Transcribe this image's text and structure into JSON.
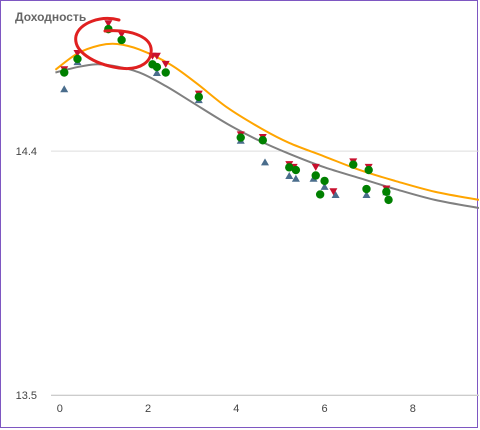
{
  "colors": {
    "fit_orange": "#ffa500",
    "fit_gray": "#808080",
    "series_green": "#008000",
    "series_red": "#c8102e",
    "series_blue": "#4a6d8c",
    "annotation": "#e02020",
    "grid": "#dddddd"
  },
  "chart_data": {
    "type": "scatter",
    "title": "Доходность",
    "xlabel": "",
    "ylabel": "",
    "xlim": [
      -0.2,
      9.5
    ],
    "ylim": [
      13.5,
      14.88
    ],
    "x_ticks": [
      0,
      2,
      4,
      6,
      8
    ],
    "y_ticks": [
      13.5,
      14.4
    ],
    "grid": "horizontal",
    "series": [
      {
        "marker": "circle",
        "points": [
          [
            0.1,
            14.69
          ],
          [
            0.4,
            14.74
          ],
          [
            1.1,
            14.85
          ],
          [
            1.4,
            14.81
          ],
          [
            2.1,
            14.72
          ],
          [
            2.2,
            14.71
          ],
          [
            2.4,
            14.69
          ],
          [
            3.15,
            14.6
          ],
          [
            4.1,
            14.45
          ],
          [
            4.6,
            14.44
          ],
          [
            5.2,
            14.34
          ],
          [
            5.35,
            14.33
          ],
          [
            5.8,
            14.31
          ],
          [
            5.9,
            14.24
          ],
          [
            6.0,
            14.29
          ],
          [
            6.65,
            14.35
          ],
          [
            6.95,
            14.26
          ],
          [
            7.0,
            14.33
          ],
          [
            7.4,
            14.25
          ],
          [
            7.45,
            14.22
          ]
        ]
      },
      {
        "marker": "triangle-down",
        "points": [
          [
            0.1,
            14.7
          ],
          [
            0.4,
            14.76
          ],
          [
            1.1,
            14.87
          ],
          [
            1.4,
            14.83
          ],
          [
            2.1,
            14.75
          ],
          [
            2.2,
            14.75
          ],
          [
            2.4,
            14.72
          ],
          [
            3.15,
            14.61
          ],
          [
            4.1,
            14.46
          ],
          [
            4.6,
            14.45
          ],
          [
            5.2,
            14.35
          ],
          [
            5.3,
            14.34
          ],
          [
            5.8,
            14.34
          ],
          [
            6.2,
            14.25
          ],
          [
            6.65,
            14.36
          ],
          [
            7.0,
            14.34
          ],
          [
            7.4,
            14.26
          ]
        ]
      },
      {
        "marker": "triangle-up",
        "points": [
          [
            0.1,
            14.63
          ],
          [
            0.4,
            14.73
          ],
          [
            2.2,
            14.69
          ],
          [
            3.15,
            14.59
          ],
          [
            4.1,
            14.44
          ],
          [
            4.65,
            14.36
          ],
          [
            5.2,
            14.31
          ],
          [
            5.35,
            14.3
          ],
          [
            5.75,
            14.3
          ],
          [
            6.0,
            14.27
          ],
          [
            6.25,
            14.24
          ],
          [
            6.95,
            14.24
          ],
          [
            7.4,
            14.25
          ]
        ]
      }
    ],
    "fits": [
      {
        "color": "orange",
        "points": [
          [
            -0.1,
            14.7
          ],
          [
            0.4,
            14.76
          ],
          [
            0.9,
            14.79
          ],
          [
            1.3,
            14.795
          ],
          [
            1.8,
            14.775
          ],
          [
            2.5,
            14.72
          ],
          [
            3.1,
            14.65
          ],
          [
            3.8,
            14.56
          ],
          [
            4.6,
            14.48
          ],
          [
            5.2,
            14.43
          ],
          [
            6.0,
            14.38
          ],
          [
            6.8,
            14.33
          ],
          [
            7.6,
            14.29
          ],
          [
            8.5,
            14.25
          ],
          [
            9.5,
            14.22
          ]
        ]
      },
      {
        "color": "gray",
        "points": [
          [
            -0.1,
            14.69
          ],
          [
            0.4,
            14.71
          ],
          [
            0.8,
            14.72
          ],
          [
            1.2,
            14.715
          ],
          [
            1.8,
            14.69
          ],
          [
            2.4,
            14.64
          ],
          [
            3.0,
            14.58
          ],
          [
            3.8,
            14.5
          ],
          [
            4.5,
            14.44
          ],
          [
            5.2,
            14.39
          ],
          [
            6.0,
            14.34
          ],
          [
            6.8,
            14.3
          ],
          [
            7.6,
            14.26
          ],
          [
            8.5,
            14.22
          ],
          [
            9.5,
            14.19
          ]
        ]
      }
    ]
  }
}
